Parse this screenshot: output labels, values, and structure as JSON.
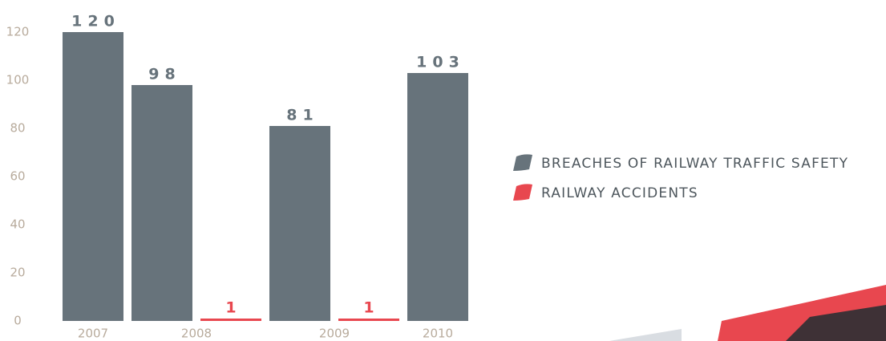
{
  "chart_data": {
    "type": "bar",
    "categories": [
      "2007",
      "2008",
      "2009",
      "2010"
    ],
    "series": [
      {
        "name": "BREACHES OF RAILWAY TRAFFIC SAFETY",
        "color": "#67737b",
        "values": [
          120,
          98,
          81,
          103
        ]
      },
      {
        "name": "RAILWAY ACCIDENTS",
        "color": "#e8474f",
        "values": [
          null,
          1,
          1,
          null
        ]
      }
    ],
    "ylim": [
      0,
      120
    ],
    "yticks": [
      0,
      20,
      40,
      60,
      80,
      100,
      120
    ],
    "legend": "right"
  }
}
